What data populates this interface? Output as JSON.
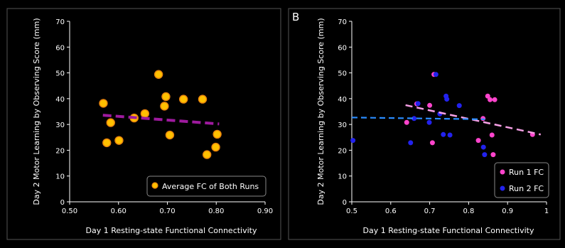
{
  "chart_data": [
    {
      "type": "scatter",
      "panel_label": "",
      "xlabel": "Day 1 Resting-state Functional Connectivity",
      "ylabel": "Day 2 Motor Learning by Observing Score (mm)",
      "xlim": [
        0.5,
        0.9
      ],
      "ylim": [
        0,
        70
      ],
      "x_ticks": [
        "0.50",
        "0.60",
        "0.70",
        "0.80",
        "0.90"
      ],
      "y_ticks": [
        "0",
        "10",
        "20",
        "30",
        "40",
        "50",
        "60",
        "70"
      ],
      "grid": false,
      "legend_position": "bottom-right",
      "series": [
        {
          "name": "Average FC of Both Runs",
          "color": "#FFC000",
          "edge_color": "#E8820C",
          "points": [
            {
              "x": 0.569,
              "y": 38.2
            },
            {
              "x": 0.576,
              "y": 22.9
            },
            {
              "x": 0.584,
              "y": 30.7
            },
            {
              "x": 0.601,
              "y": 23.8
            },
            {
              "x": 0.632,
              "y": 32.5
            },
            {
              "x": 0.654,
              "y": 34.2
            },
            {
              "x": 0.682,
              "y": 49.4
            },
            {
              "x": 0.694,
              "y": 37.1
            },
            {
              "x": 0.697,
              "y": 40.8
            },
            {
              "x": 0.705,
              "y": 25.9
            },
            {
              "x": 0.733,
              "y": 39.8
            },
            {
              "x": 0.772,
              "y": 39.8
            },
            {
              "x": 0.781,
              "y": 18.3
            },
            {
              "x": 0.799,
              "y": 21.2
            },
            {
              "x": 0.802,
              "y": 26.2
            }
          ],
          "trendline": {
            "x": [
              0.568,
              0.806
            ],
            "y": [
              33.6,
              30.2
            ],
            "color": "#9E1A9E",
            "dash": "long-dash"
          }
        }
      ]
    },
    {
      "type": "scatter",
      "panel_label": "B",
      "xlabel": "Day 1 Resting-state Functional Connectivity",
      "ylabel": "Day 2 Motor Learning by Observing Score (mm)",
      "xlim": [
        0.5,
        1.0
      ],
      "ylim": [
        0,
        70
      ],
      "x_ticks": [
        "0.5",
        "0.6",
        "0.7",
        "0.8",
        "0.9",
        "1"
      ],
      "y_ticks": [
        "0",
        "10",
        "20",
        "30",
        "40",
        "50",
        "60",
        "70"
      ],
      "grid": false,
      "legend_position": "bottom-right",
      "series": [
        {
          "name": "Run 1 FC",
          "color": "#FF44CC",
          "points": [
            {
              "x": 0.641,
              "y": 30.8
            },
            {
              "x": 0.667,
              "y": 38.0
            },
            {
              "x": 0.7,
              "y": 37.4
            },
            {
              "x": 0.707,
              "y": 22.9
            },
            {
              "x": 0.711,
              "y": 49.4
            },
            {
              "x": 0.825,
              "y": 23.8
            },
            {
              "x": 0.837,
              "y": 32.3
            },
            {
              "x": 0.849,
              "y": 41.0
            },
            {
              "x": 0.855,
              "y": 39.6
            },
            {
              "x": 0.86,
              "y": 25.9
            },
            {
              "x": 0.863,
              "y": 18.3
            },
            {
              "x": 0.867,
              "y": 39.6
            },
            {
              "x": 0.964,
              "y": 26.1
            }
          ],
          "trendline": {
            "x": [
              0.638,
              0.985
            ],
            "y": [
              37.5,
              26.1
            ],
            "color": "#F7A0E6",
            "dash": "long-dash"
          }
        },
        {
          "name": "Run 2 FC",
          "color": "#2222EE",
          "points": [
            {
              "x": 0.503,
              "y": 23.8
            },
            {
              "x": 0.651,
              "y": 22.9
            },
            {
              "x": 0.66,
              "y": 32.3
            },
            {
              "x": 0.67,
              "y": 38.1
            },
            {
              "x": 0.699,
              "y": 30.8
            },
            {
              "x": 0.716,
              "y": 49.4
            },
            {
              "x": 0.726,
              "y": 34.1
            },
            {
              "x": 0.735,
              "y": 26.1
            },
            {
              "x": 0.742,
              "y": 41.0
            },
            {
              "x": 0.744,
              "y": 39.8
            },
            {
              "x": 0.752,
              "y": 25.9
            },
            {
              "x": 0.776,
              "y": 37.3
            },
            {
              "x": 0.838,
              "y": 21.2
            },
            {
              "x": 0.841,
              "y": 18.3
            }
          ],
          "trendline": {
            "x": [
              0.5,
              0.842
            ],
            "y": [
              32.7,
              32.0
            ],
            "color": "#2A8CFF",
            "dash": "medium-dash"
          }
        }
      ]
    }
  ]
}
